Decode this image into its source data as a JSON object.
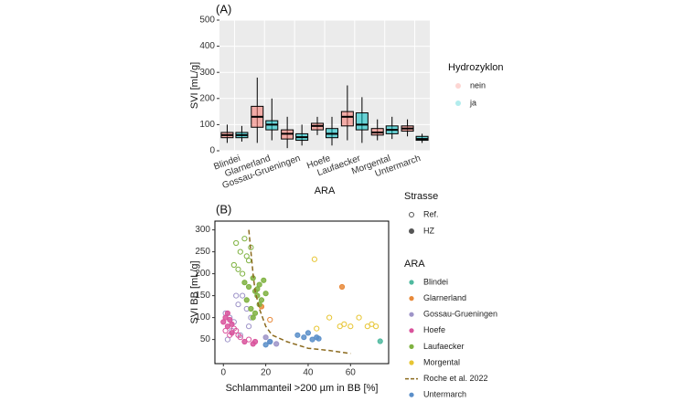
{
  "chart_data": [
    {
      "type": "box",
      "title": "(A)",
      "x_label": "ARA",
      "y_label": "SVI [mL/g]",
      "categories": [
        "Blindei",
        "Glarnerland",
        "Gossau-Grueningen",
        "Hoefe",
        "Laufaecker",
        "Morgental",
        "Untermarch"
      ],
      "ylim": [
        0,
        500
      ],
      "yticks": [
        0,
        100,
        200,
        300,
        400,
        500
      ],
      "grid": true,
      "legend_title": "Hydrozyklon",
      "series": [
        {
          "name": "nein",
          "color": "#f8766d",
          "min": [
            30,
            30,
            10,
            60,
            40,
            40,
            55
          ],
          "q1": [
            50,
            90,
            45,
            80,
            95,
            60,
            75
          ],
          "median": [
            60,
            130,
            65,
            95,
            130,
            70,
            85
          ],
          "q3": [
            70,
            170,
            80,
            105,
            150,
            85,
            95
          ],
          "max": [
            100,
            280,
            130,
            130,
            250,
            120,
            120
          ]
        },
        {
          "name": "ja",
          "color": "#00bfc4",
          "min": [
            35,
            40,
            20,
            20,
            30,
            45,
            30
          ],
          "q1": [
            50,
            80,
            40,
            50,
            80,
            65,
            40
          ],
          "median": [
            60,
            100,
            52,
            65,
            100,
            80,
            45
          ],
          "q3": [
            70,
            115,
            65,
            85,
            145,
            95,
            55
          ],
          "max": [
            95,
            200,
            100,
            130,
            205,
            130,
            65
          ]
        }
      ]
    },
    {
      "type": "scatter",
      "title": "(B)",
      "x_label": "Schlammanteil >200 µm in BB [%]",
      "y_label": "SVI BB [mL/g]",
      "xlim": [
        -4,
        78
      ],
      "xticks": [
        0,
        20,
        40,
        60
      ],
      "ylim": [
        -5,
        320
      ],
      "yticks": [
        50,
        100,
        150,
        200,
        250,
        300
      ],
      "strasse_title": "Strasse",
      "strasse": [
        "Ref.",
        "HZ"
      ],
      "legend_title": "ARA",
      "series": [
        {
          "name": "Blindei",
          "color": "#4fb99f",
          "x": [
            74
          ],
          "y": [
            46
          ],
          "strasse": [
            1
          ]
        },
        {
          "name": "Glarnerland",
          "color": "#e8893a",
          "x": [
            56,
            18,
            22
          ],
          "y": [
            170,
            125,
            95
          ],
          "strasse": [
            1,
            1,
            0
          ]
        },
        {
          "name": "Gossau-Grueningen",
          "color": "#9e94c8",
          "x": [
            1,
            3,
            5,
            7,
            9,
            11,
            13,
            4,
            8,
            12,
            20,
            22,
            25,
            2,
            6
          ],
          "y": [
            110,
            100,
            90,
            130,
            150,
            120,
            100,
            70,
            60,
            80,
            55,
            45,
            40,
            50,
            150
          ],
          "strasse": [
            0,
            0,
            0,
            0,
            0,
            0,
            0,
            0,
            0,
            0,
            1,
            1,
            1,
            0,
            0
          ]
        },
        {
          "name": "Hoefe",
          "color": "#d9539c",
          "x": [
            0,
            1,
            2,
            3,
            4,
            5,
            6,
            7,
            2,
            4,
            8,
            10,
            12,
            14,
            15,
            1,
            3
          ],
          "y": [
            90,
            100,
            80,
            95,
            85,
            75,
            70,
            60,
            110,
            65,
            55,
            45,
            50,
            40,
            45,
            70,
            60
          ],
          "strasse": [
            1,
            1,
            1,
            1,
            1,
            0,
            0,
            0,
            1,
            1,
            0,
            1,
            0,
            1,
            1,
            0,
            0
          ]
        },
        {
          "name": "Laufaecker",
          "color": "#7fb241",
          "x": [
            6,
            8,
            10,
            11,
            12,
            13,
            9,
            7,
            10,
            12,
            14,
            15,
            16,
            17,
            18,
            19,
            11,
            13,
            15,
            14,
            17,
            16,
            20,
            5
          ],
          "y": [
            270,
            250,
            280,
            240,
            230,
            260,
            200,
            210,
            180,
            170,
            190,
            160,
            150,
            175,
            140,
            185,
            140,
            120,
            110,
            100,
            130,
            165,
            155,
            220
          ],
          "strasse": [
            0,
            0,
            0,
            0,
            0,
            0,
            0,
            0,
            1,
            1,
            1,
            1,
            1,
            1,
            1,
            1,
            1,
            1,
            1,
            1,
            1,
            1,
            1,
            0
          ]
        },
        {
          "name": "Morgental",
          "color": "#e7c533",
          "x": [
            43,
            44,
            50,
            55,
            57,
            60,
            64,
            68,
            70,
            72
          ],
          "y": [
            233,
            75,
            100,
            80,
            85,
            80,
            100,
            80,
            85,
            80
          ],
          "strasse": [
            0,
            0,
            0,
            0,
            0,
            0,
            0,
            0,
            0,
            0
          ]
        },
        {
          "name": "Roche et al. 2022",
          "mode": "line",
          "color": "#8b6a1e",
          "x": [
            12,
            13,
            14,
            15,
            17,
            20,
            23,
            30,
            40,
            50,
            60
          ],
          "y": [
            300,
            250,
            200,
            160,
            120,
            80,
            60,
            45,
            30,
            25,
            18
          ]
        },
        {
          "name": "Untermarch",
          "color": "#5b8fc9",
          "x": [
            35,
            38,
            40,
            42,
            44,
            45,
            22,
            20
          ],
          "y": [
            60,
            55,
            65,
            50,
            55,
            52,
            45,
            38
          ],
          "strasse": [
            1,
            1,
            1,
            1,
            1,
            1,
            1,
            1
          ]
        }
      ]
    }
  ]
}
